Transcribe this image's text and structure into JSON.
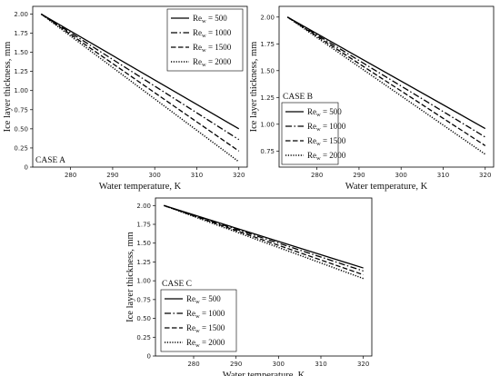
{
  "chart_data": [
    {
      "type": "line",
      "case_label": "CASE A",
      "xlabel": "Water temperature, K",
      "ylabel": "Ice layer thickness, mm",
      "xlim": [
        271,
        322
      ],
      "ylim": [
        0,
        2.1
      ],
      "xticks": [
        "280",
        "290",
        "300",
        "310",
        "320"
      ],
      "yticks": [
        "0",
        "0.25",
        "0.50",
        "0.75",
        "1.00",
        "1.25",
        "1.50",
        "1.75",
        "2.00"
      ],
      "legend_position": "top-right",
      "series": [
        {
          "name_prefix": "Re",
          "name_sub": "w",
          "name_value": " = 500",
          "style": "solid",
          "x": [
            273,
            320
          ],
          "y": [
            2.0,
            0.5
          ]
        },
        {
          "name_prefix": "Re",
          "name_sub": "w",
          "name_value": " = 1000",
          "style": "dashdot",
          "x": [
            273,
            320
          ],
          "y": [
            2.0,
            0.36
          ]
        },
        {
          "name_prefix": "Re",
          "name_sub": "w",
          "name_value": " = 1500",
          "style": "dashed",
          "x": [
            273,
            320
          ],
          "y": [
            2.0,
            0.21
          ]
        },
        {
          "name_prefix": "Re",
          "name_sub": "w",
          "name_value": " = 2000",
          "style": "dotted",
          "x": [
            273,
            320
          ],
          "y": [
            2.0,
            0.07
          ]
        }
      ]
    },
    {
      "type": "line",
      "case_label": "CASE B",
      "xlabel": "Water temperature, K",
      "ylabel": "Ice layer thickness, mm",
      "xlim": [
        271,
        322
      ],
      "ylim": [
        0.6,
        2.1
      ],
      "xticks": [
        "280",
        "290",
        "300",
        "310",
        "320"
      ],
      "yticks": [
        "0.75",
        "1.00",
        "1.25",
        "1.50",
        "1.75",
        "2.00"
      ],
      "legend_position": "bottom-left",
      "series": [
        {
          "name_prefix": "Re",
          "name_sub": "w",
          "name_value": " = 500",
          "style": "solid",
          "x": [
            273,
            320
          ],
          "y": [
            2.0,
            0.96
          ]
        },
        {
          "name_prefix": "Re",
          "name_sub": "w",
          "name_value": " = 1000",
          "style": "dashdot",
          "x": [
            273,
            320
          ],
          "y": [
            2.0,
            0.88
          ]
        },
        {
          "name_prefix": "Re",
          "name_sub": "w",
          "name_value": " = 1500",
          "style": "dashed",
          "x": [
            273,
            320
          ],
          "y": [
            2.0,
            0.8
          ]
        },
        {
          "name_prefix": "Re",
          "name_sub": "w",
          "name_value": " = 2000",
          "style": "dotted",
          "x": [
            273,
            320
          ],
          "y": [
            2.0,
            0.72
          ]
        }
      ]
    },
    {
      "type": "line",
      "case_label": "CASE C",
      "xlabel": "Water temperature, K",
      "ylabel": "Ice layer thickness, mm",
      "xlim": [
        271,
        322
      ],
      "ylim": [
        0,
        2.1
      ],
      "xticks": [
        "280",
        "290",
        "300",
        "310",
        "320"
      ],
      "yticks": [
        "0",
        "0.25",
        "0.50",
        "0.75",
        "1.00",
        "1.25",
        "1.50",
        "1.75",
        "2.00"
      ],
      "legend_position": "bottom-left",
      "series": [
        {
          "name_prefix": "Re",
          "name_sub": "w",
          "name_value": " = 500",
          "style": "solid",
          "x": [
            273,
            320
          ],
          "y": [
            2.0,
            1.17
          ]
        },
        {
          "name_prefix": "Re",
          "name_sub": "w",
          "name_value": " = 1000",
          "style": "dashdot",
          "x": [
            273,
            320
          ],
          "y": [
            2.0,
            1.13
          ]
        },
        {
          "name_prefix": "Re",
          "name_sub": "w",
          "name_value": " = 1500",
          "style": "dashed",
          "x": [
            273,
            320
          ],
          "y": [
            2.0,
            1.08
          ]
        },
        {
          "name_prefix": "Re",
          "name_sub": "w",
          "name_value": " = 2000",
          "style": "dotted",
          "x": [
            273,
            320
          ],
          "y": [
            2.0,
            1.03
          ]
        }
      ]
    }
  ]
}
